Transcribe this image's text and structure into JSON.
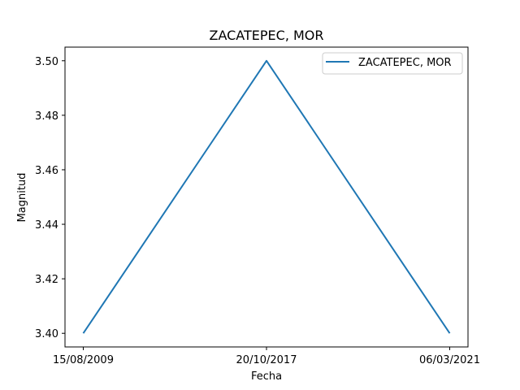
{
  "chart_data": {
    "type": "line",
    "title": "ZACATEPEC, MOR",
    "xlabel": "Fecha",
    "ylabel": "Magnitud",
    "categories": [
      "15/08/2009",
      "20/10/2017",
      "06/03/2021"
    ],
    "series": [
      {
        "name": "ZACATEPEC, MOR",
        "values": [
          3.4,
          3.5,
          3.4
        ],
        "color": "#1f77b4"
      }
    ],
    "ylim": [
      3.395,
      3.505
    ],
    "yticks": [
      3.4,
      3.42,
      3.44,
      3.46,
      3.48,
      3.5
    ],
    "ytick_labels": [
      "3.40",
      "3.42",
      "3.44",
      "3.46",
      "3.48",
      "3.50"
    ],
    "grid": false,
    "legend_placement": "top-right"
  }
}
